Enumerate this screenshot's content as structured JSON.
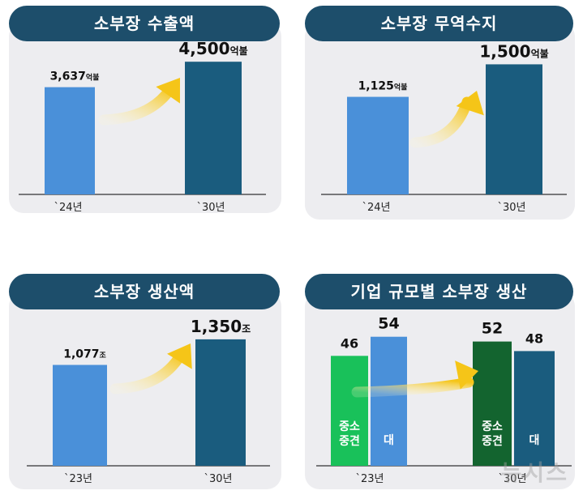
{
  "colors": {
    "bar_old": "#4a90d9",
    "bar_new": "#1a5c7e",
    "bar_sme_old": "#19c15a",
    "bar_sme_new": "#13642f",
    "header": "#1d4e6b",
    "arrow": "#f5c518"
  },
  "chart_data": [
    {
      "type": "bar",
      "title": "소부장 수출액",
      "categories": [
        "`24년",
        "`30년"
      ],
      "values": [
        3637,
        4500
      ],
      "value_labels": [
        {
          "num": "3,637",
          "unit": "억불"
        },
        {
          "num": "4,500",
          "unit": "억불"
        }
      ],
      "ylim": [
        0,
        5000
      ]
    },
    {
      "type": "bar",
      "title": "소부장 무역수지",
      "categories": [
        "`24년",
        "`30년"
      ],
      "values": [
        1125,
        1500
      ],
      "value_labels": [
        {
          "num": "1,125",
          "unit": "억불"
        },
        {
          "num": "1,500",
          "unit": "억불"
        }
      ],
      "ylim": [
        0,
        1700
      ]
    },
    {
      "type": "bar",
      "title": "소부장 생산액",
      "categories": [
        "`23년",
        "`30년"
      ],
      "values": [
        1077,
        1350
      ],
      "value_labels": [
        {
          "num": "1,077",
          "unit": "조"
        },
        {
          "num": "1,350",
          "unit": "조"
        }
      ],
      "ylim": [
        0,
        1600
      ]
    },
    {
      "type": "bar",
      "title": "기업 규모별 소부장 생산",
      "categories": [
        "`23년",
        "`30년"
      ],
      "series": [
        {
          "name": "중소중견",
          "values": [
            46,
            52
          ]
        },
        {
          "name": "대",
          "values": [
            54,
            48
          ]
        }
      ],
      "series_labels": [
        [
          "중소",
          "중견"
        ],
        [
          "대"
        ]
      ],
      "ylim": [
        0,
        60
      ]
    }
  ],
  "watermark": "뉴시스"
}
